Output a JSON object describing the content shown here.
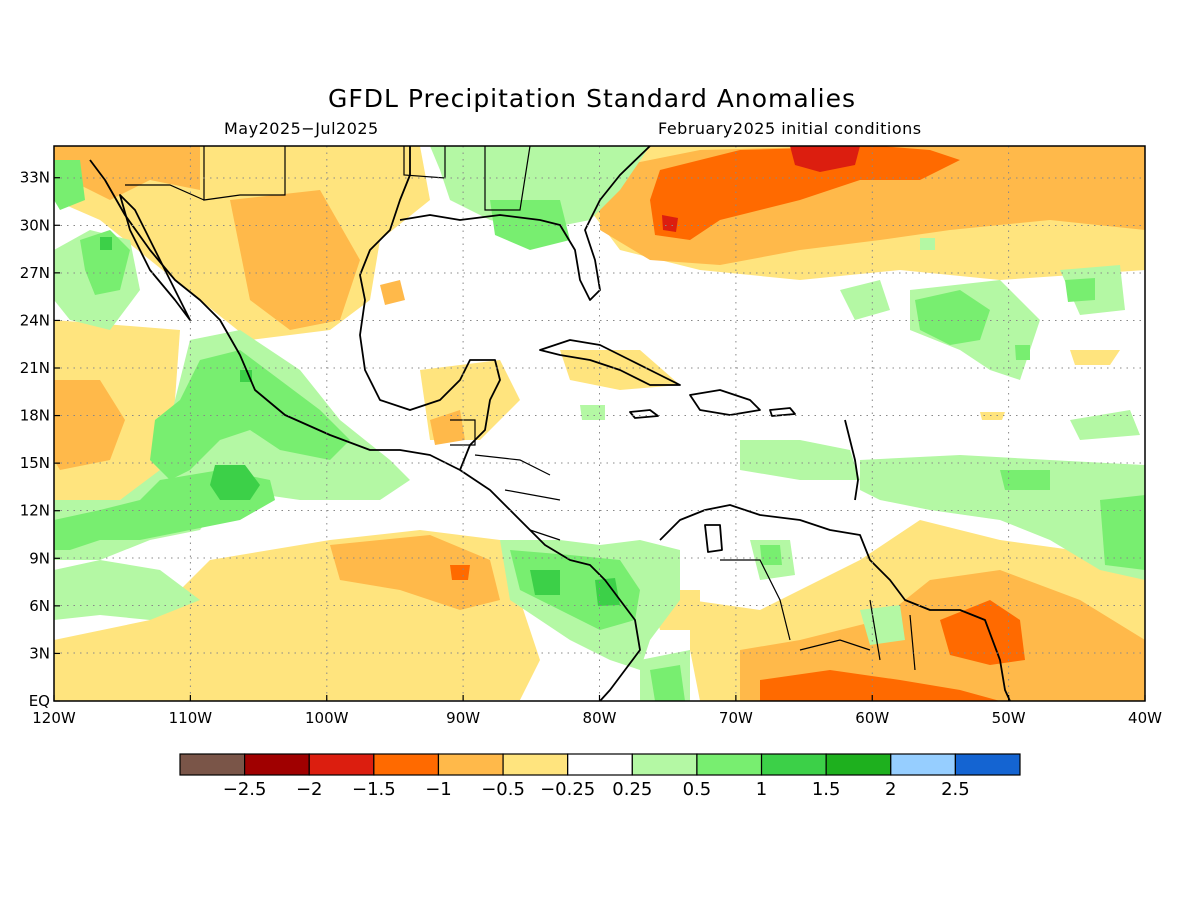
{
  "title": "GFDL Precipitation Standard Anomalies",
  "period": "May2025−Jul2025",
  "init": "February2025 initial conditions",
  "map": {
    "region": "Caribbean / Central America / Gulf of Mexico",
    "extent": {
      "lon": [
        -120,
        -40
      ],
      "lat": [
        0,
        35
      ]
    },
    "lat_ticks": [
      {
        "value": 33,
        "label": "33N"
      },
      {
        "value": 30,
        "label": "30N"
      },
      {
        "value": 27,
        "label": "27N"
      },
      {
        "value": 24,
        "label": "24N"
      },
      {
        "value": 21,
        "label": "21N"
      },
      {
        "value": 18,
        "label": "18N"
      },
      {
        "value": 15,
        "label": "15N"
      },
      {
        "value": 12,
        "label": "12N"
      },
      {
        "value": 9,
        "label": "9N"
      },
      {
        "value": 6,
        "label": "6N"
      },
      {
        "value": 3,
        "label": "3N"
      },
      {
        "value": 0,
        "label": "EQ"
      }
    ],
    "lon_ticks": [
      {
        "value": -120,
        "label": "120W"
      },
      {
        "value": -110,
        "label": "110W"
      },
      {
        "value": -100,
        "label": "100W"
      },
      {
        "value": -90,
        "label": "90W"
      },
      {
        "value": -80,
        "label": "80W"
      },
      {
        "value": -70,
        "label": "70W"
      },
      {
        "value": -60,
        "label": "60W"
      },
      {
        "value": -50,
        "label": "50W"
      },
      {
        "value": -40,
        "label": "40W"
      }
    ],
    "grid": "dotted"
  },
  "legend": {
    "colors": [
      "#7a5548",
      "#a00000",
      "#dc1e0f",
      "#ff6a00",
      "#ffb94a",
      "#ffe47e",
      "#ffffff",
      "#b4f8a4",
      "#78ee70",
      "#3cd048",
      "#1eb01e",
      "#96ceff",
      "#1464d2"
    ],
    "labels": [
      "−2.5",
      "−2",
      "−1.5",
      "−1",
      "−0.5",
      "−0.25",
      "0.25",
      "0.5",
      "1",
      "1.5",
      "2",
      "2.5"
    ]
  },
  "colors": {
    "dry_light": "#ffe47e",
    "dry_moderate": "#ffb94a",
    "dry_strong": "#ff6a00",
    "dry_very_strong": "#dc1e0f",
    "wet_light": "#b4f8a4",
    "wet_moderate": "#78ee70",
    "wet_strong": "#3cd048"
  }
}
